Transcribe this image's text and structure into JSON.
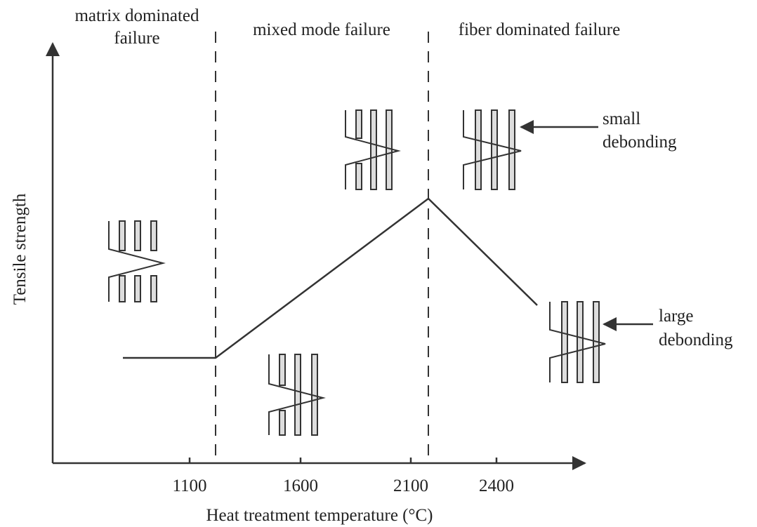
{
  "regions": {
    "left": [
      "matrix dominated",
      "failure"
    ],
    "middle": "mixed mode failure",
    "right": "fiber dominated failure"
  },
  "callouts": {
    "small": [
      "small",
      "debonding"
    ],
    "large": [
      "large",
      "debonding"
    ]
  },
  "axes": {
    "y_label": "Tensile strength",
    "x_label": "Heat treatment temperature (°C)",
    "x_tick_labels": [
      "1100",
      "1600",
      "2100",
      "2400"
    ]
  }
}
